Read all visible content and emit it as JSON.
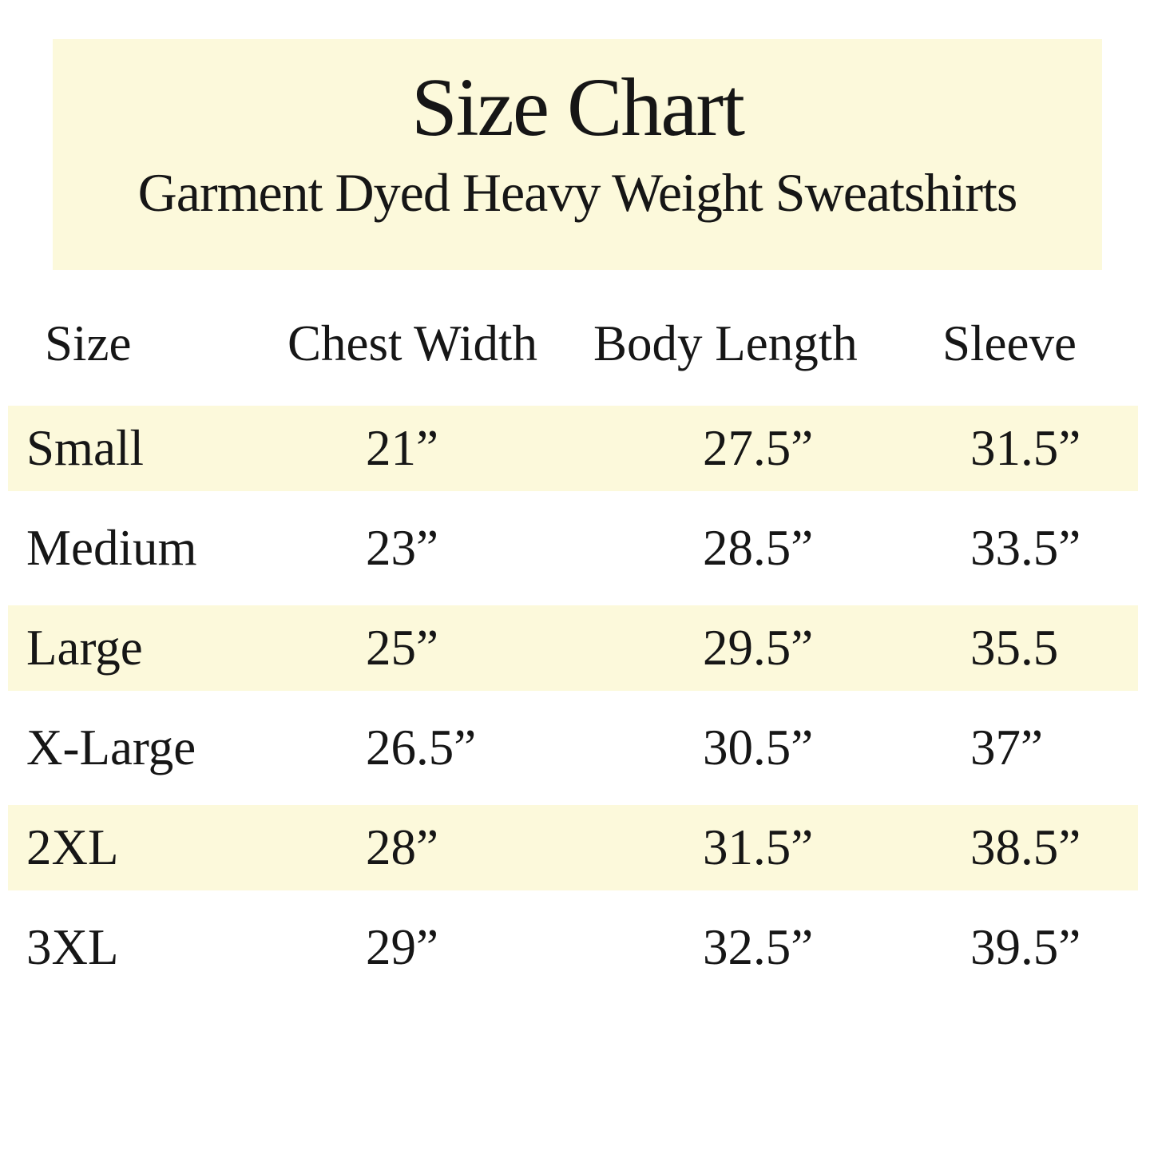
{
  "chart_data": {
    "type": "table",
    "title": "Size Chart",
    "subtitle": "Garment Dyed Heavy Weight Sweatshirts",
    "columns": [
      "Size",
      "Chest Width",
      "Body Length",
      "Sleeve"
    ],
    "rows": [
      {
        "size": "Small",
        "chest_width": "21”",
        "body_length": "27.5”",
        "sleeve": "31.5”"
      },
      {
        "size": "Medium",
        "chest_width": "23”",
        "body_length": "28.5”",
        "sleeve": "33.5”"
      },
      {
        "size": "Large",
        "chest_width": "25”",
        "body_length": "29.5”",
        "sleeve": "35.5"
      },
      {
        "size": "X-Large",
        "chest_width": "26.5”",
        "body_length": "30.5”",
        "sleeve": "37”"
      },
      {
        "size": "2XL",
        "chest_width": "28”",
        "body_length": "31.5”",
        "sleeve": "38.5”"
      },
      {
        "size": "3XL",
        "chest_width": "29”",
        "body_length": "32.5”",
        "sleeve": "39.5”"
      }
    ],
    "units": "inches",
    "highlighted_rows": [
      "Small",
      "Large",
      "2XL"
    ],
    "layout": {
      "legend": "none",
      "grid": "off",
      "row_striping": "alternating starting with first data row"
    }
  },
  "colors": {
    "background": "#ffffff",
    "highlight": "#fcf9db",
    "text": "#161616"
  }
}
